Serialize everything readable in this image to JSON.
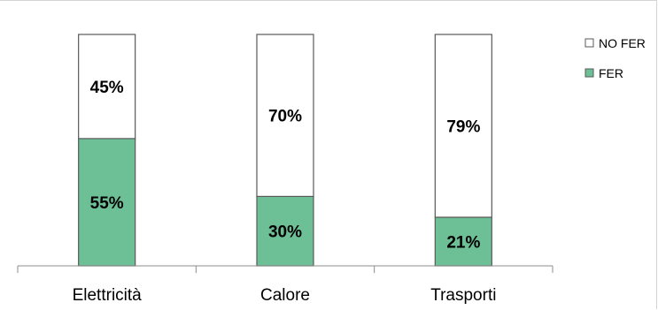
{
  "chart_data": {
    "type": "bar",
    "stacked": true,
    "percent": true,
    "categories": [
      "Elettricità",
      "Calore",
      "Trasporti"
    ],
    "series": [
      {
        "name": "FER",
        "values": [
          55,
          30,
          21
        ],
        "labels": [
          "55%",
          "30%",
          "21%"
        ],
        "color": "#6dbf96"
      },
      {
        "name": "NO FER",
        "values": [
          45,
          70,
          79
        ],
        "labels": [
          "45%",
          "70%",
          "79%"
        ],
        "color": "#ffffff"
      }
    ],
    "legend": {
      "position": "top-right",
      "items": [
        {
          "label": "NO FER",
          "color": "#ffffff"
        },
        {
          "label": "FER",
          "color": "#6dbf96"
        }
      ]
    },
    "title": "",
    "xlabel": "",
    "ylabel": "",
    "ylim": [
      0,
      100
    ],
    "grid": false
  }
}
